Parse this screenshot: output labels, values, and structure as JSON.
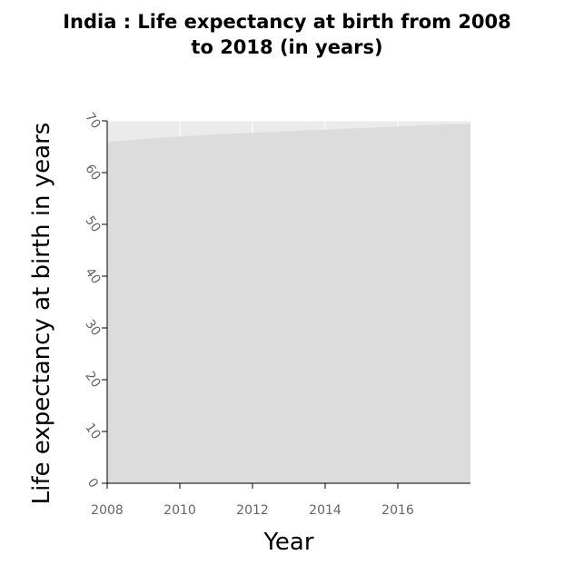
{
  "chart_data": {
    "type": "area",
    "title_line1": "India : Life expectancy at birth from 2008",
    "title_line2": "to 2018 (in years)",
    "xlabel": "Year",
    "ylabel": "Life expectancy at birth in years",
    "x": [
      2008,
      2009,
      2010,
      2011,
      2012,
      2013,
      2014,
      2015,
      2016,
      2017,
      2018
    ],
    "series": [
      {
        "values": [
          65.9,
          66.5,
          67.0,
          67.4,
          67.7,
          68.0,
          68.3,
          68.6,
          68.9,
          69.2,
          69.4
        ]
      }
    ],
    "xlim": [
      2008,
      2018
    ],
    "ylim": [
      0,
      70
    ],
    "xticks": [
      "2008",
      "2010",
      "2012",
      "2014",
      "2016"
    ],
    "yticks": [
      "0",
      "10",
      "20",
      "30",
      "40",
      "50",
      "60",
      "70"
    ],
    "grid": true,
    "colors": {
      "area": "#dcdcdc",
      "plot_background": "#ebebeb",
      "grid": "#ffffff"
    }
  }
}
